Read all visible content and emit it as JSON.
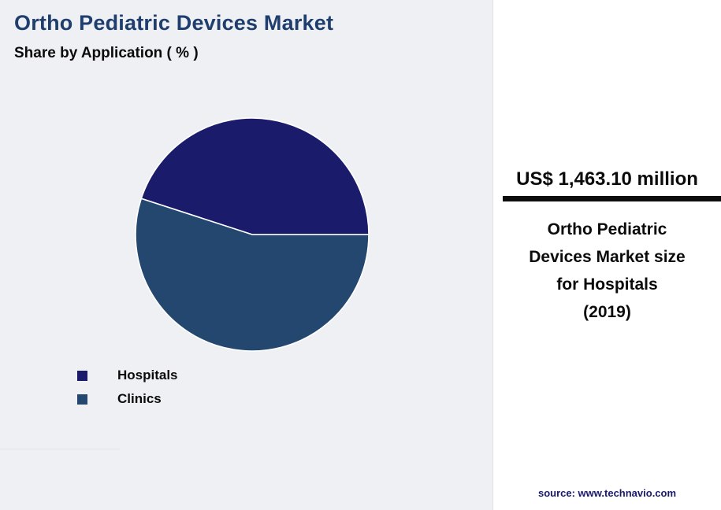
{
  "header": {
    "title": "Ortho Pediatric Devices Market",
    "subtitle": "Share by Application ( % )"
  },
  "chart_data": {
    "type": "pie",
    "title": "Ortho Pediatric Devices Market - Share by Application (%)",
    "labels": [
      "Hospitals",
      "Clinics"
    ],
    "values": [
      45,
      55
    ],
    "colors": [
      "#1a1b6b",
      "#23476f"
    ],
    "start_angle_deg": 0,
    "legend_position": "bottom-left",
    "data_labels_shown": false
  },
  "side_panel": {
    "value": "US$ 1,463.10 million",
    "description_lines": [
      "Ortho Pediatric",
      "Devices Market size",
      "for Hospitals",
      "(2019)"
    ],
    "source": "source: www.technavio.com"
  }
}
